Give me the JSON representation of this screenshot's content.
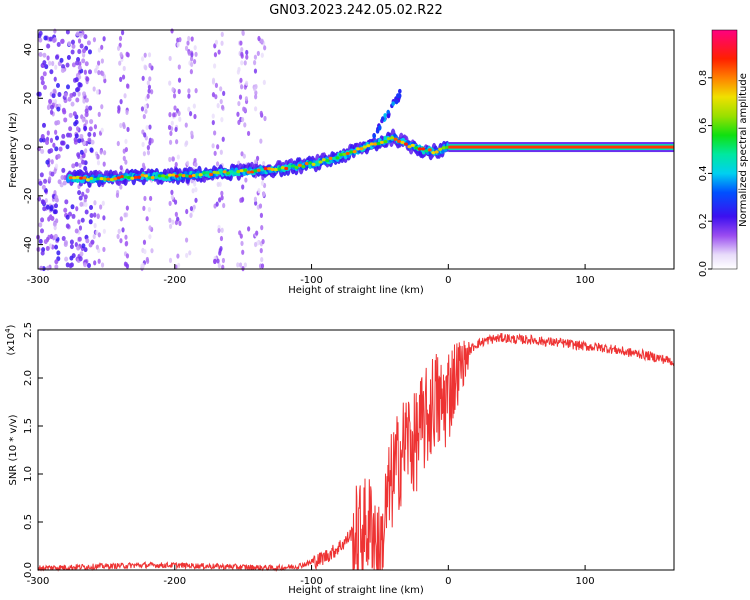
{
  "title": "GN03.2023.242.05.02.R22",
  "chart_data": [
    {
      "type": "heatmap",
      "xlabel": "Height of straight line (km)",
      "ylabel": "Frequency (Hz)",
      "xlim": [
        -300,
        165
      ],
      "ylim": [
        -50,
        48
      ],
      "xticks": [
        -300,
        -200,
        -100,
        0,
        100
      ],
      "yticks": [
        -40,
        -20,
        0,
        20,
        40
      ],
      "colorbar": {
        "label": "Normalized spectral amplitude",
        "range": [
          0,
          1
        ],
        "ticks": [
          "0.0",
          "0.2",
          "0.4",
          "0.6",
          "0.8"
        ],
        "tick_values": [
          0.0,
          0.2,
          0.4,
          0.6,
          0.8
        ]
      },
      "ridge": {
        "x": [
          -275,
          -250,
          -225,
          -200,
          -175,
          -150,
          -125,
          -100,
          -85,
          -70,
          -60,
          -50,
          -40,
          -30,
          -20,
          -10,
          0,
          165
        ],
        "y": [
          -13,
          -13,
          -12,
          -12,
          -11,
          -10,
          -9,
          -7,
          -5,
          -2,
          0,
          2,
          4,
          1,
          -1,
          -2,
          0,
          0
        ]
      },
      "noise_band_centers_x": [
        -290,
        -268,
        -255,
        -238,
        -220,
        -200,
        -188,
        -168,
        -150,
        -138
      ]
    },
    {
      "type": "line",
      "xlabel": "Height of straight line (km)",
      "ylabel": "SNR (10 * v/v)",
      "y_multiplier": "(x10",
      "y_multiplier_exp": "4",
      "y_multiplier_close": ")",
      "xlim": [
        -300,
        165
      ],
      "ylim": [
        0,
        2.5
      ],
      "xticks": [
        -300,
        -200,
        -100,
        0,
        100
      ],
      "yticks": [
        0.0,
        0.5,
        1.0,
        1.5,
        2.0,
        2.5
      ],
      "ytick_labels": [
        "0.0",
        "0.5",
        "1.0",
        "1.5",
        "2.0",
        "2.5"
      ],
      "color": "#ee3333",
      "series": [
        {
          "x": [
            -300,
            -275,
            -250,
            -225,
            -200,
            -175,
            -150,
            -125,
            -110,
            -95,
            -85,
            -75,
            -65,
            -55,
            -50,
            -45,
            -40,
            -35,
            -30,
            -25,
            -20,
            -15,
            -10,
            -5,
            0,
            5,
            10,
            20,
            30,
            40,
            50,
            60,
            70,
            80,
            90,
            100,
            110,
            120,
            130,
            140,
            150,
            165
          ],
          "values": [
            0.02,
            0.03,
            0.04,
            0.05,
            0.05,
            0.04,
            0.03,
            0.02,
            0.04,
            0.1,
            0.18,
            0.3,
            0.5,
            0.6,
            0.2,
            0.8,
            1.1,
            1.3,
            1.5,
            1.4,
            1.6,
            1.7,
            1.9,
            1.8,
            1.95,
            2.1,
            2.2,
            2.35,
            2.4,
            2.42,
            2.4,
            2.4,
            2.38,
            2.37,
            2.35,
            2.33,
            2.32,
            2.3,
            2.27,
            2.25,
            2.22,
            2.17
          ]
        }
      ]
    }
  ]
}
